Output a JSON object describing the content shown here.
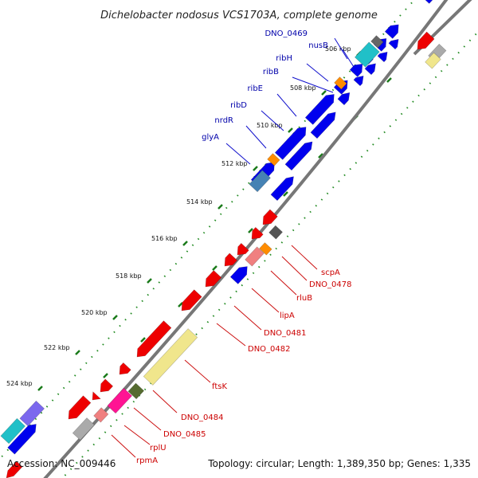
{
  "title": "Dichelobacter nodosus VCS1703A, complete genome",
  "footer": {
    "accession": "Accession: NC_009446",
    "topology": "Topology: circular; Length: 1,389,350 bp; Genes: 1,335"
  },
  "colors": {
    "background": "#ffffff",
    "backbone": "#777777",
    "forward_gene": "#0000ee",
    "reverse_gene": "#ee0000",
    "upper_label": "#0000aa",
    "lower_label": "#cc0000",
    "leader": "#1010cc",
    "leader_lower": "#cc1010",
    "tick_dot": "#228b22",
    "tick_dash": "#1a7a1a"
  },
  "ticks": [
    "506 kbp",
    "508 kbp",
    "510 kbp",
    "512 kbp",
    "514 kbp",
    "516 kbp",
    "518 kbp",
    "520 kbp",
    "522 kbp",
    "524 kbp"
  ],
  "upper_labels": [
    "DNO_0469",
    "nusB",
    "ribH",
    "ribB",
    "ribE",
    "ribD",
    "nrdR",
    "glyA"
  ],
  "lower_labels": [
    "scpA",
    "DNO_0478",
    "rluB",
    "lipA",
    "DNO_0481",
    "DNO_0482",
    "ftsK",
    "DNO_0484",
    "DNO_0485",
    "rplU",
    "rpmA"
  ]
}
